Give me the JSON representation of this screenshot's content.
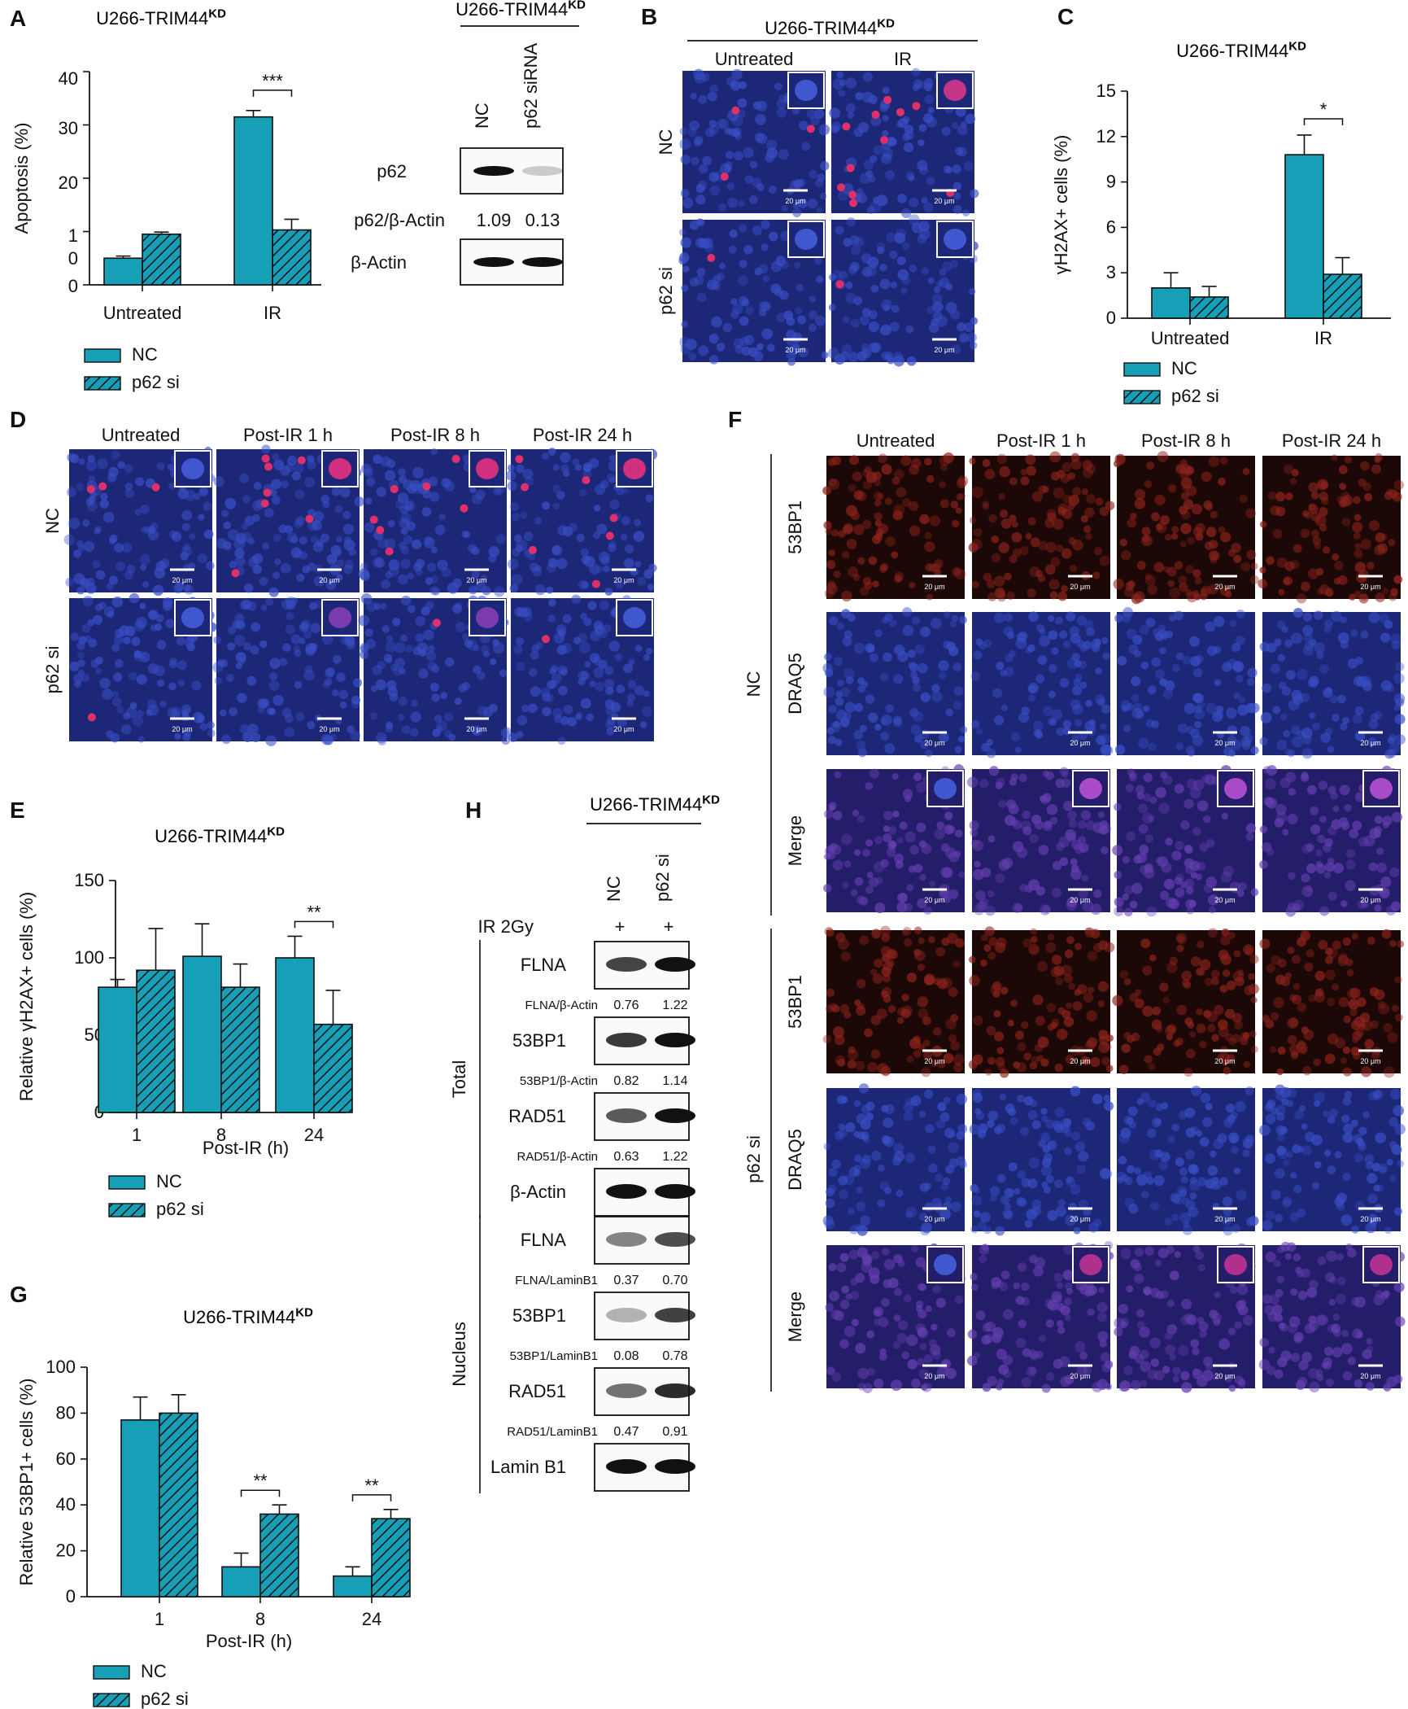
{
  "colors": {
    "nc": "#189fb8",
    "stroke": "#111111",
    "micro_bg": "#1f2b7e",
    "micro_red": "#7a1e1e",
    "micro_merge": "#4a2f8f"
  },
  "cell_line_main": "U266-TRIM44",
  "cell_line_sup": "KD",
  "panel_letters": [
    "A",
    "B",
    "C",
    "D",
    "E",
    "F",
    "G",
    "H"
  ],
  "chart_data": [
    {
      "id": "A",
      "type": "bar",
      "categories": [
        "Untreated",
        "IR"
      ],
      "series": [
        {
          "name": "NC",
          "values": [
            5,
            31.5
          ],
          "errors": [
            0.4,
            1.2
          ]
        },
        {
          "name": "p62 si",
          "values": [
            9.5,
            10.3
          ],
          "errors": [
            0.4,
            2
          ]
        }
      ],
      "ylabel": "Apoptosis (%)",
      "ylim": [
        0,
        40
      ],
      "yticks": [
        "40",
        "30",
        "20",
        "1",
        "0",
        "0"
      ],
      "significance": [
        {
          "category": "IR",
          "label": "***"
        }
      ],
      "legend": [
        "NC",
        "p62 si"
      ]
    },
    {
      "id": "C",
      "type": "bar",
      "categories": [
        "Untreated",
        "IR"
      ],
      "series": [
        {
          "name": "NC",
          "values": [
            2,
            10.8
          ],
          "errors": [
            1,
            1.3
          ]
        },
        {
          "name": "p62 si",
          "values": [
            1.4,
            2.9
          ],
          "errors": [
            0.7,
            1.1
          ]
        }
      ],
      "ylabel": "γH2AX+ cells (%)",
      "ylim": [
        0,
        15
      ],
      "yticks": [
        "15",
        "12",
        "9",
        "6",
        "3",
        "0"
      ],
      "significance": [
        {
          "category": "IR",
          "label": "*"
        }
      ],
      "legend": [
        "NC",
        "p62 si"
      ]
    },
    {
      "id": "E",
      "type": "bar",
      "categories": [
        "1",
        "8",
        "24"
      ],
      "series": [
        {
          "name": "NC",
          "values": [
            81,
            101,
            100
          ],
          "errors": [
            5,
            21,
            14
          ]
        },
        {
          "name": "p62 si",
          "values": [
            92,
            81,
            57
          ],
          "errors": [
            27,
            15,
            22
          ]
        }
      ],
      "ylabel": "Relative γH2AX+ cells (%)",
      "xlabel": "Post-IR (h)",
      "ylim": [
        0,
        150
      ],
      "yticks": [
        "150",
        "100",
        "50",
        "0"
      ],
      "significance": [
        {
          "category": "24",
          "label": "**"
        }
      ],
      "legend": [
        "NC",
        "p62 si"
      ]
    },
    {
      "id": "G",
      "type": "bar",
      "categories": [
        "1",
        "8",
        "24"
      ],
      "series": [
        {
          "name": "NC",
          "values": [
            77,
            13,
            9
          ],
          "errors": [
            10,
            6,
            4
          ]
        },
        {
          "name": "p62 si",
          "values": [
            80,
            36,
            34
          ],
          "errors": [
            8,
            4,
            4
          ]
        }
      ],
      "ylabel": "Relative 53BP1+ cells (%)",
      "xlabel": "Post-IR (h)",
      "ylim": [
        0,
        100
      ],
      "yticks": [
        "100",
        "80",
        "60",
        "40",
        "20",
        "0"
      ],
      "significance": [
        {
          "category": "8",
          "label": "**"
        },
        {
          "category": "24",
          "label": "**"
        }
      ],
      "legend": [
        "NC",
        "p62 si"
      ]
    }
  ],
  "blot_a": {
    "lanes": [
      "NC",
      "p62 siRNA"
    ],
    "rows": [
      {
        "label": "p62",
        "kind": "band",
        "intensity": [
          1,
          0.2
        ]
      },
      {
        "label": "p62/β-Actin",
        "kind": "value",
        "values": [
          "1.09",
          "0.13"
        ]
      },
      {
        "label": "β-Actin",
        "kind": "band",
        "intensity": [
          1,
          1
        ]
      }
    ]
  },
  "micro_b": {
    "cols": [
      "Untreated",
      "IR"
    ],
    "rows": [
      "NC",
      "p62 si"
    ],
    "scale": "20 μm"
  },
  "micro_d": {
    "cols": [
      "Untreated",
      "Post-IR 1 h",
      "Post-IR 8 h",
      "Post-IR 24 h"
    ],
    "rows": [
      "NC",
      "p62 si"
    ],
    "scale": "20 μm"
  },
  "micro_f": {
    "cols": [
      "Untreated",
      "Post-IR 1 h",
      "Post-IR 8 h",
      "Post-IR 24 h"
    ],
    "groups": [
      "NC",
      "p62 si"
    ],
    "rows": [
      "53BP1",
      "DRAQ5",
      "Merge"
    ],
    "scale": "20 μm"
  },
  "blot_h": {
    "lanes": [
      "NC",
      "p62 si"
    ],
    "treatment": {
      "label": "IR 2Gy",
      "values": [
        "+",
        "+"
      ]
    },
    "groups": [
      {
        "label": "Total",
        "rows": [
          {
            "band": "FLNA",
            "ratio": "FLNA/β-Actin",
            "values": [
              "0.76",
              "1.22"
            ]
          },
          {
            "band": "53BP1",
            "ratio": "53BP1/β-Actin",
            "values": [
              "0.82",
              "1.14"
            ]
          },
          {
            "band": "RAD51",
            "ratio": "RAD51/β-Actin",
            "values": [
              "0.63",
              "1.22"
            ]
          },
          {
            "band": "β-Actin"
          }
        ]
      },
      {
        "label": "Nucleus",
        "rows": [
          {
            "band": "FLNA",
            "ratio": "FLNA/LaminB1",
            "values": [
              "0.37",
              "0.70"
            ]
          },
          {
            "band": "53BP1",
            "ratio": "53BP1/LaminB1",
            "values": [
              "0.08",
              "0.78"
            ]
          },
          {
            "band": "RAD51",
            "ratio": "RAD51/LaminB1",
            "values": [
              "0.47",
              "0.91"
            ]
          },
          {
            "band": "Lamin B1"
          }
        ]
      }
    ]
  }
}
